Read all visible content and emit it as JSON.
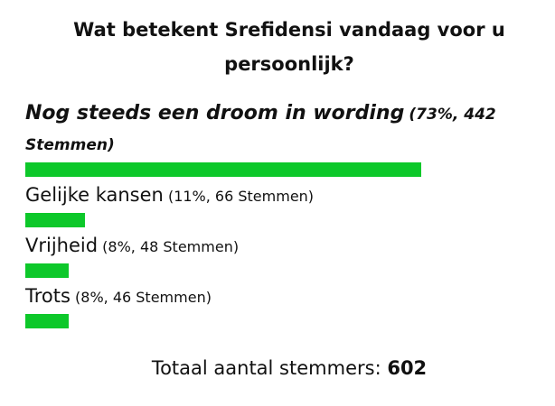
{
  "poll": {
    "question": "Wat betekent Srefidensi vandaag voor u persoonlijk?",
    "options": [
      {
        "label": "Nog steeds een droom in wording",
        "detail": "(73%, 442 Stemmen)",
        "percent": 73
      },
      {
        "label": "Gelijke kansen",
        "detail": "(11%, 66 Stemmen)",
        "percent": 11
      },
      {
        "label": "Vrijheid",
        "detail": "(8%, 48 Stemmen)",
        "percent": 8
      },
      {
        "label": "Trots",
        "detail": "(8%, 46 Stemmen)",
        "percent": 8
      }
    ],
    "total_label": "Totaal aantal stemmers:",
    "total": 602
  }
}
